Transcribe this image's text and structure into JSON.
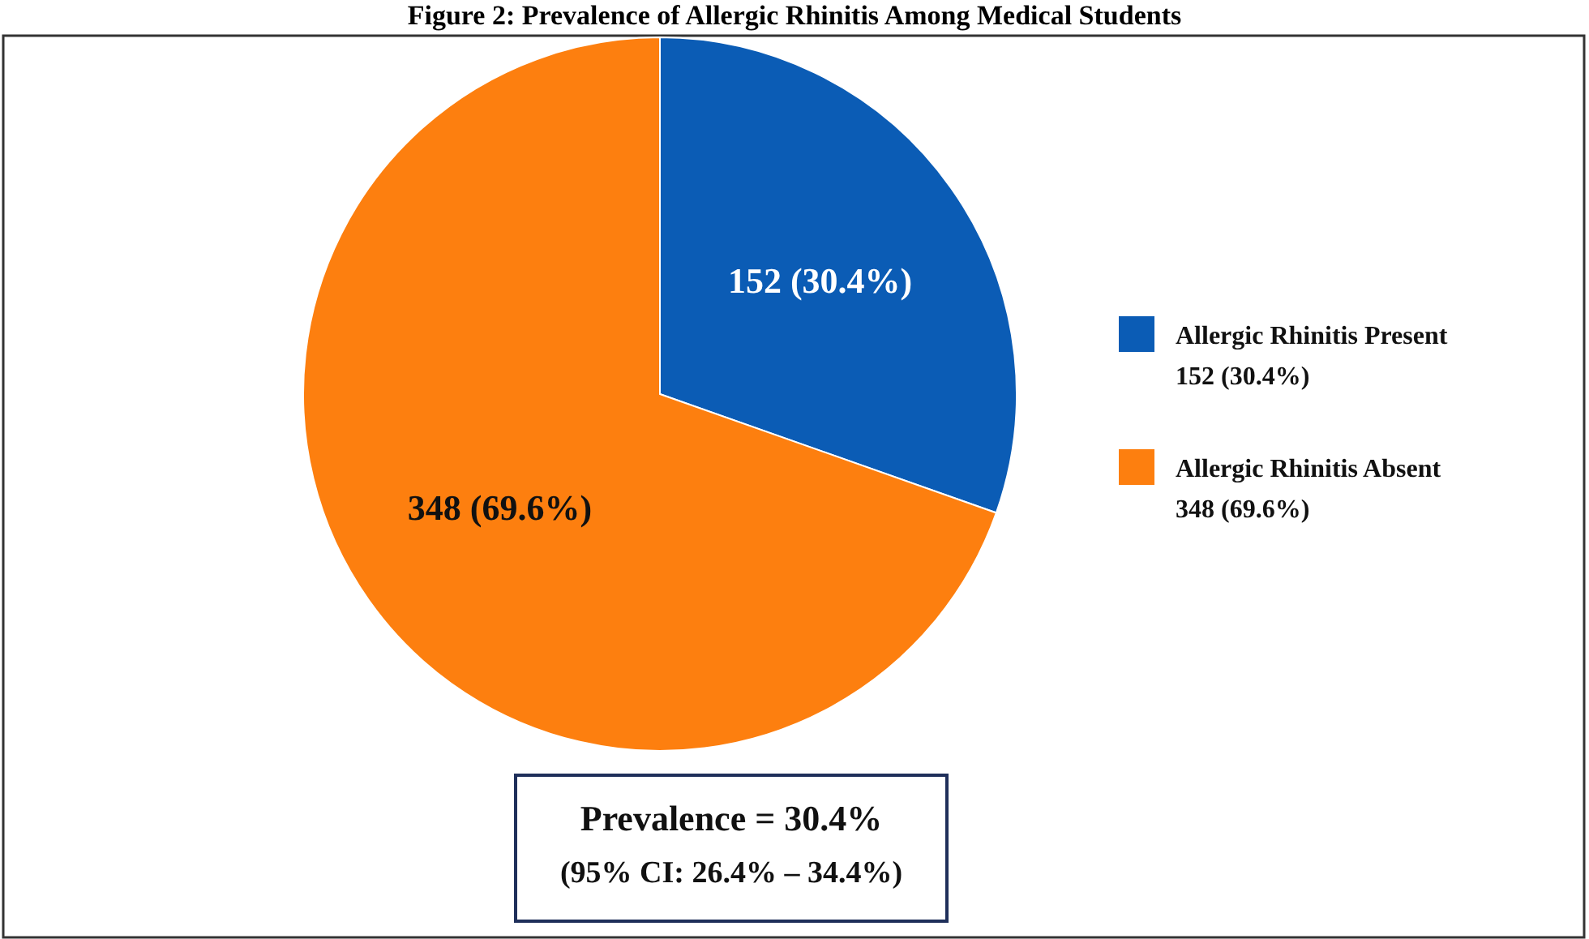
{
  "chart_data": {
    "type": "pie",
    "title": "Figure 2: Prevalence of Allergic Rhinitis Among Medical Students",
    "categories": [
      "Allergic Rhinitis Present",
      "Allergic Rhinitis Absent"
    ],
    "values": [
      152,
      348
    ],
    "colors": [
      "#0b5cb5",
      "#fd7f0f"
    ],
    "value_labels": [
      "152 (30.4%)",
      "348 (69.6%)"
    ],
    "legend": "right",
    "annotations": [
      "Prevalence = 30.4%",
      "(95% CI: 26.4% – 34.4%)"
    ]
  }
}
